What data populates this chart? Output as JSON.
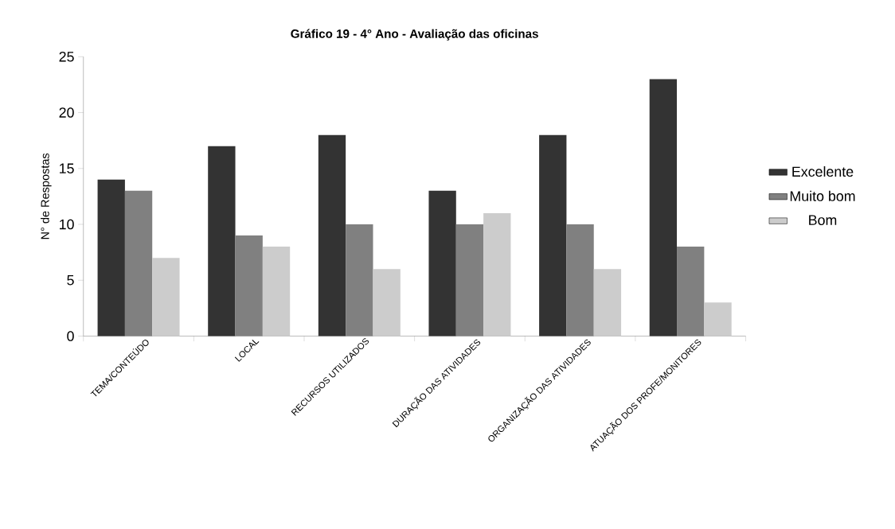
{
  "chart_data": {
    "type": "bar",
    "title": "Gráfico 19 - 4° Ano - Avaliação das oficinas",
    "ylabel": "N° de Respostas",
    "categories": [
      "TEMA/CONTEÚDO",
      "LOCAL",
      "RECURSOS UTILIZADOS",
      "DURAÇÃO DAS ATIVIDADES",
      "ORGANIZAÇÃO DAS ATIVIDADES",
      "ATUAÇÃO DOS PROFE/MONITORES"
    ],
    "series": [
      {
        "name": "Excelente",
        "color": "#333333",
        "values": [
          14,
          17,
          18,
          13,
          18,
          23
        ]
      },
      {
        "name": "Muito bom",
        "color": "#808080",
        "values": [
          13,
          9,
          10,
          10,
          10,
          8
        ]
      },
      {
        "name": "Bom",
        "color": "#cccccc",
        "values": [
          7,
          8,
          6,
          11,
          6,
          3
        ]
      }
    ],
    "ylim": [
      0,
      25
    ],
    "yticks": [
      0,
      5,
      10,
      15,
      20,
      25
    ],
    "legend": "right"
  }
}
